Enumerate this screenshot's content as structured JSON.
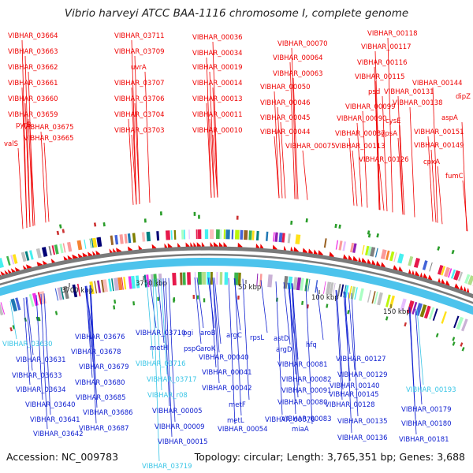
{
  "title": "Vibrio harveyi ATCC BAA-1116 chromosome I, complete genome",
  "footer": {
    "accession": "Accession: NC_009783",
    "stats": "Topology: circular; Length: 3,765,351 bp; Genes: 3,688"
  },
  "colors": {
    "forward": "#ee0000",
    "reverse": "#1020d0",
    "reverse_alt": "#39c5e6",
    "backbone": "#7a7a7a",
    "tick": "#333333"
  },
  "ticks": [
    "3700 kbp",
    "3750 kbp",
    "50 kbp",
    "100 kbp",
    "150 kbp"
  ],
  "top_labels": [
    "VIBHAR_03664",
    "VIBHAR_03663",
    "VIBHAR_03662",
    "VIBHAR_03661",
    "VIBHAR_03660",
    "VIBHAR_03659",
    "pyrB",
    "VIBHAR_03675",
    "VIBHAR_03665",
    "valS",
    "VIBHAR_03711",
    "VIBHAR_03709",
    "uvrA",
    "VIBHAR_03707",
    "VIBHAR_03706",
    "VIBHAR_03704",
    "VIBHAR_03703",
    "VIBHAR_00036",
    "VIBHAR_00034",
    "VIBHAR_00019",
    "VIBHAR_00014",
    "VIBHAR_00013",
    "VIBHAR_00011",
    "VIBHAR_00010",
    "VIBHAR_00070",
    "VIBHAR_00064",
    "VIBHAR_00063",
    "VIBHAR_00050",
    "VIBHAR_00046",
    "VIBHAR_00045",
    "VIBHAR_00044",
    "VIBHAR_00075",
    "VIBHAR_00118",
    "VIBHAR_00117",
    "VIBHAR_00116",
    "VIBHAR_00115",
    "psd",
    "VIBHAR_00099",
    "VIBHAR_00090",
    "VIBHAR_00087",
    "VIBHAR_00113",
    "VIBHAR_00144",
    "VIBHAR_00131",
    "VIBHAR_00138",
    "dipZ",
    "cysE",
    "gpsA",
    "aspA",
    "VIBHAR_00151",
    "VIBHAR_00149",
    "VIBHAR_00126",
    "cpxA",
    "fumC"
  ],
  "bottom_labels": [
    "VIBHAR_03630",
    "VIBHAR_03631",
    "VIBHAR_03633",
    "VIBHAR_03634",
    "VIBHAR_03640",
    "VIBHAR_03641",
    "VIBHAR_03642",
    "VIBHAR_03676",
    "VIBHAR_03678",
    "VIBHAR_03679",
    "VIBHAR_03680",
    "VIBHAR_03685",
    "VIBHAR_03686",
    "VIBHAR_03687",
    "VIBHAR_03710",
    "metH",
    "VIBHAR_03716",
    "VIBHAR_03717",
    "VIBHAR_r08",
    "VIBHAR_00005",
    "VIBHAR_00009",
    "VIBHAR_00015",
    "VIBHAR_03719",
    "pgi",
    "aroB",
    "pspG",
    "aroK",
    "argC",
    "rpsL",
    "VIBHAR_00040",
    "VIBHAR_00041",
    "VIBHAR_00042",
    "metF",
    "metL",
    "VIBHAR_00054",
    "astD",
    "argD",
    "hfq",
    "VIBHAR_00081",
    "VIBHAR_00082",
    "VIBHAR_00091",
    "VIBHAR_00080",
    "VIBHAR_00083",
    "VIBHAR_00076",
    "miaA",
    "VIBHAR_00127",
    "VIBHAR_00129",
    "VIBHAR_00140",
    "VIBHAR_00145",
    "VIBHAR_00128",
    "VIBHAR_00135",
    "VIBHAR_00136",
    "VIBHAR_00193",
    "VIBHAR_00179",
    "VIBHAR_00180",
    "VIBHAR_00181"
  ]
}
